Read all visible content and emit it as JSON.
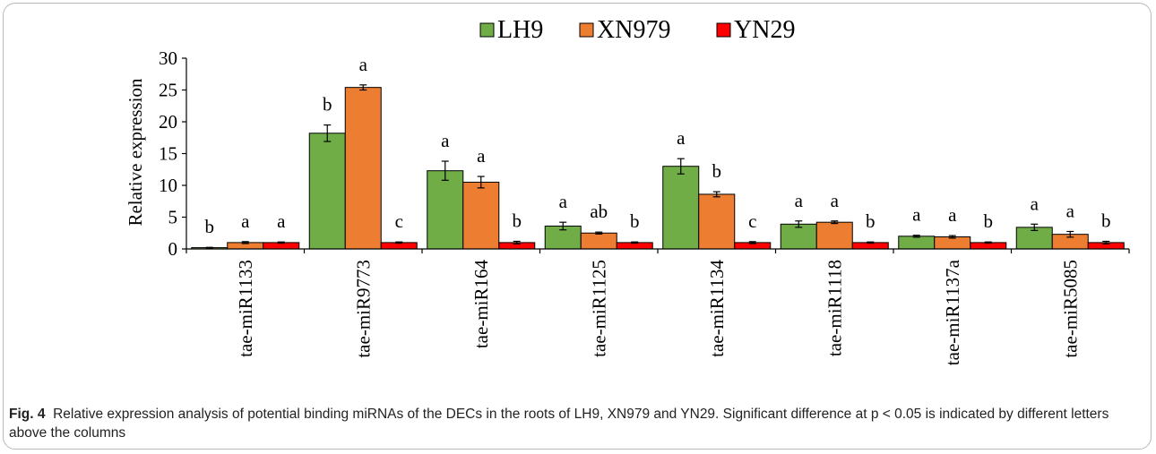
{
  "chart_data": {
    "type": "bar",
    "ylabel": "Relative expression",
    "ylim": [
      0,
      30
    ],
    "yticks": [
      0,
      5,
      10,
      15,
      20,
      25,
      30
    ],
    "categories": [
      "tae-miR1133",
      "tae-miR9773",
      "tae-miR164",
      "tae-miR1125",
      "tae-miR1134",
      "tae-miR1118",
      "tae-miR1137a",
      "tae-miR5085"
    ],
    "series": [
      {
        "name": "LH9",
        "color": "#70ad47",
        "values": [
          0.2,
          18.2,
          12.3,
          3.6,
          13.0,
          3.9,
          2.0,
          3.4
        ],
        "errors": [
          0.05,
          1.3,
          1.5,
          0.6,
          1.2,
          0.5,
          0.15,
          0.5
        ],
        "letters": [
          "b",
          "b",
          "a",
          "a",
          "a",
          "a",
          "a",
          "a"
        ]
      },
      {
        "name": "XN979",
        "color": "#ed7d31",
        "values": [
          1.0,
          25.4,
          10.5,
          2.5,
          8.6,
          4.2,
          1.9,
          2.3
        ],
        "errors": [
          0.15,
          0.4,
          0.9,
          0.15,
          0.4,
          0.2,
          0.2,
          0.45
        ],
        "letters": [
          "a",
          "a",
          "a",
          "ab",
          "b",
          "a",
          "a",
          "a"
        ]
      },
      {
        "name": "YN29",
        "color": "#ff0000",
        "values": [
          1.0,
          1.0,
          1.0,
          1.0,
          1.0,
          1.0,
          1.0,
          1.0
        ],
        "errors": [
          0.1,
          0.1,
          0.2,
          0.1,
          0.15,
          0.1,
          0.1,
          0.2
        ],
        "letters": [
          "a",
          "c",
          "b",
          "b",
          "c",
          "b",
          "b",
          "b"
        ]
      }
    ],
    "legend_position": "top-center",
    "grid": false
  },
  "caption": {
    "label": "Fig. 4",
    "text": "Relative expression analysis of potential binding miRNAs of the DECs in the roots of LH9, XN979 and YN29. Significant difference at p < 0.05 is indicated by different letters above the columns"
  }
}
